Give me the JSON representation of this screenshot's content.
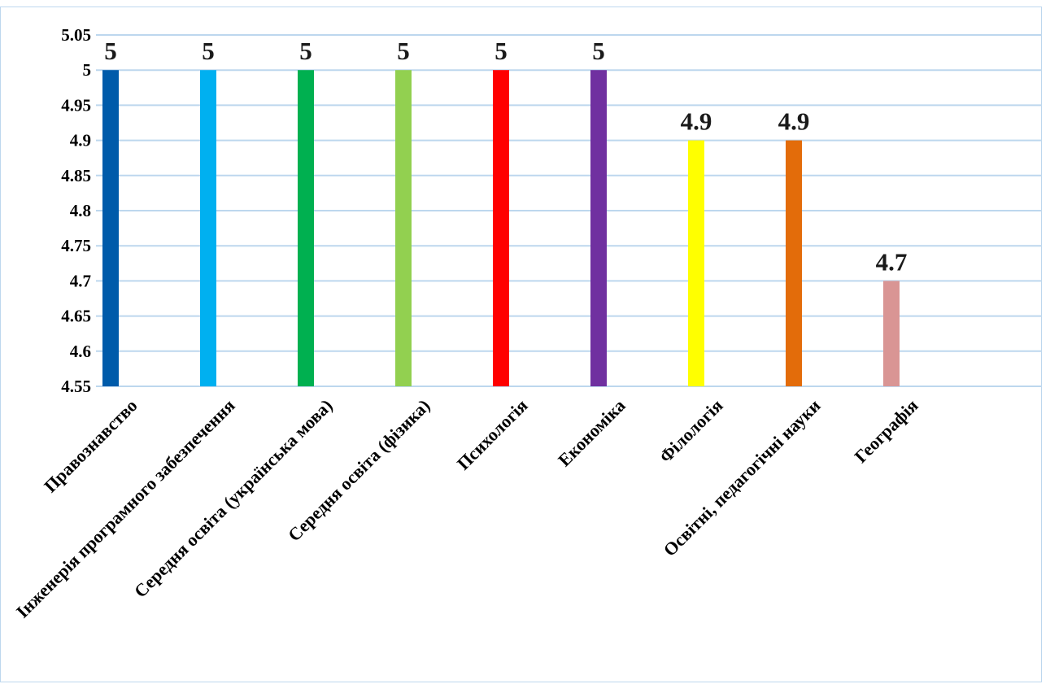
{
  "chart_data": {
    "type": "bar",
    "categories": [
      "Правознавство",
      "Інженерія програмного забезпечення",
      "Середня освіта (українська мова)",
      "Середня освіта (фізика)",
      "Психологія",
      "Економіка",
      "Філологія",
      "Освітні, педагогічні науки",
      "Географія"
    ],
    "values": [
      5,
      5,
      5,
      5,
      5,
      5,
      4.9,
      4.9,
      4.7
    ],
    "data_labels": [
      "5",
      "5",
      "5",
      "5",
      "5",
      "5",
      "4.9",
      "4.9",
      "4.7"
    ],
    "bar_colors": [
      "#005BAA",
      "#00B0F0",
      "#00B050",
      "#92D050",
      "#FF0000",
      "#7030A0",
      "#FFFF00",
      "#E36C0A",
      "#D99594"
    ],
    "ylim": [
      4.55,
      5.05
    ],
    "yticks": [
      4.55,
      4.6,
      4.65,
      4.7,
      4.75,
      4.8,
      4.85,
      4.9,
      4.95,
      5,
      5.05
    ],
    "ytick_labels": [
      "4.55",
      "4.6",
      "4.65",
      "4.7",
      "4.75",
      "4.8",
      "4.85",
      "4.9",
      "4.95",
      "5",
      "5.05"
    ],
    "grid": true,
    "gridline_color": "#BDD7EE",
    "frame_color": "#BDD7EE",
    "title": "",
    "xlabel": "",
    "ylabel": ""
  }
}
